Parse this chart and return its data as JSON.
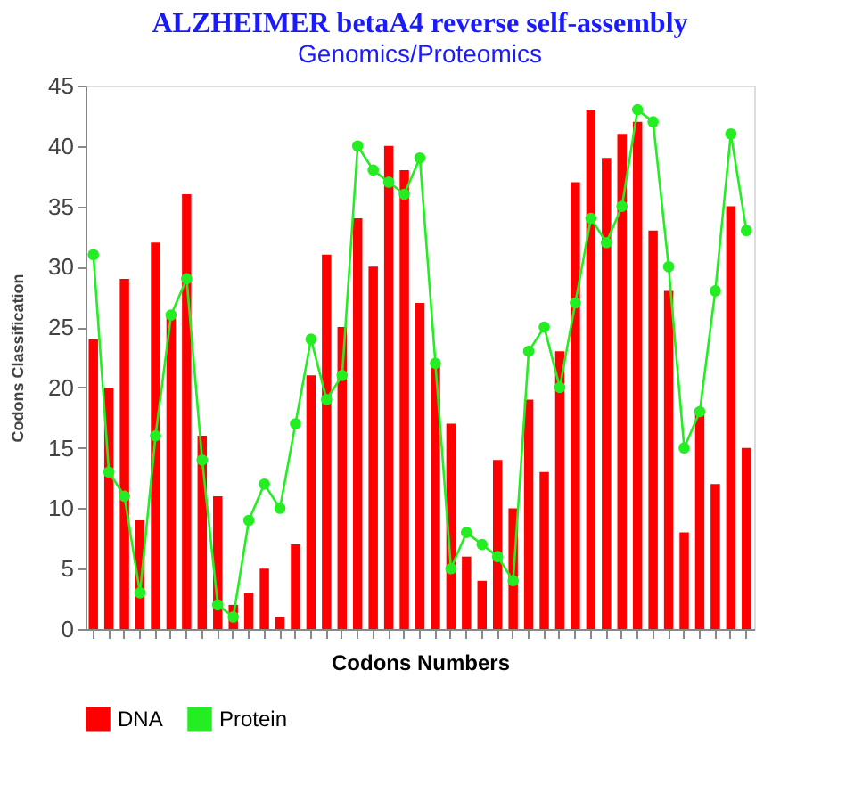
{
  "chart_data": {
    "type": "bar",
    "title": "ALZHEIMER betaA4 reverse self-assembly",
    "subtitle": "Genomics/Proteomics",
    "xlabel": "Codons Numbers",
    "ylabel": "Codons Classification",
    "categories": [
      null,
      null,
      null,
      null,
      null,
      null,
      null,
      null,
      null,
      null,
      null,
      null,
      null,
      null,
      null,
      null,
      null,
      null,
      null,
      null,
      null,
      null,
      null,
      null,
      null,
      null,
      null,
      null,
      null,
      null,
      null,
      null,
      null,
      null,
      null,
      null,
      null,
      null,
      null,
      null,
      null,
      null,
      null
    ],
    "series": [
      {
        "name": "DNA",
        "color": "#ff0000",
        "values": [
          24,
          20,
          29,
          9,
          32,
          26,
          36,
          16,
          11,
          2,
          3,
          5,
          1,
          7,
          21,
          31,
          25,
          34,
          30,
          40,
          38,
          27,
          22,
          17,
          6,
          4,
          14,
          10,
          19,
          13,
          23,
          37,
          43,
          39,
          41,
          42,
          33,
          28,
          8,
          18,
          12,
          35,
          15
        ]
      },
      {
        "name": "Protein",
        "type": "line",
        "color": "#22ee22",
        "values": [
          31,
          13,
          11,
          3,
          16,
          26,
          29,
          14,
          2,
          1,
          9,
          12,
          10,
          17,
          24,
          19,
          21,
          40,
          38,
          37,
          36,
          39,
          22,
          5,
          8,
          7,
          6,
          4,
          23,
          25,
          20,
          27,
          34,
          32,
          35,
          43,
          42,
          30,
          15,
          18,
          28,
          41,
          33
        ]
      }
    ],
    "ylim": [
      0,
      45
    ],
    "yticks": [
      0,
      5,
      10,
      15,
      20,
      25,
      30,
      35,
      40,
      45
    ],
    "tick_labels": "y",
    "legend": "bottom",
    "marker": "circle",
    "line_style": "solid",
    "grid": false
  }
}
